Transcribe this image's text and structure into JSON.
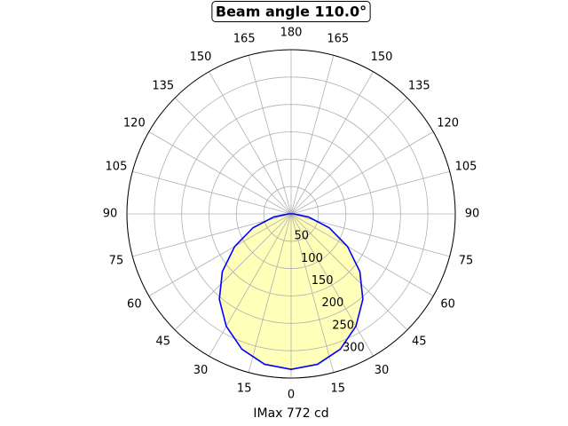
{
  "chart_data": {
    "type": "polar",
    "title": "Beam angle 110.0°",
    "xlabel": "IMax 772 cd",
    "x": [
      -90,
      -80,
      -70,
      -60,
      -50,
      -40,
      -30,
      -20,
      -10,
      0,
      10,
      20,
      30,
      40,
      50,
      60,
      70,
      80,
      90
    ],
    "values": [
      5,
      32,
      74,
      119,
      164,
      204,
      237,
      263,
      279,
      284,
      279,
      263,
      237,
      204,
      164,
      119,
      74,
      32,
      5
    ],
    "color": "#0000ff",
    "fill": "#ffffb3",
    "xticks": [
      0,
      15,
      30,
      45,
      60,
      75,
      90,
      105,
      120,
      135,
      150,
      165,
      180,
      {
        "value": 195,
        "label": "165"
      },
      {
        "value": 210,
        "label": "150"
      },
      {
        "value": 225,
        "label": "135"
      },
      {
        "value": 240,
        "label": "120"
      },
      {
        "value": 255,
        "label": "105"
      },
      {
        "value": 270,
        "label": "90"
      },
      {
        "value": 285,
        "label": "75"
      },
      {
        "value": 300,
        "label": "60"
      },
      {
        "value": 315,
        "label": "45"
      },
      {
        "value": 330,
        "label": "30"
      },
      {
        "value": 345,
        "label": "15"
      }
    ],
    "ylim": [
      0,
      300
    ],
    "yticks": [
      50,
      100,
      150,
      200,
      250,
      300
    ],
    "grid": true
  }
}
